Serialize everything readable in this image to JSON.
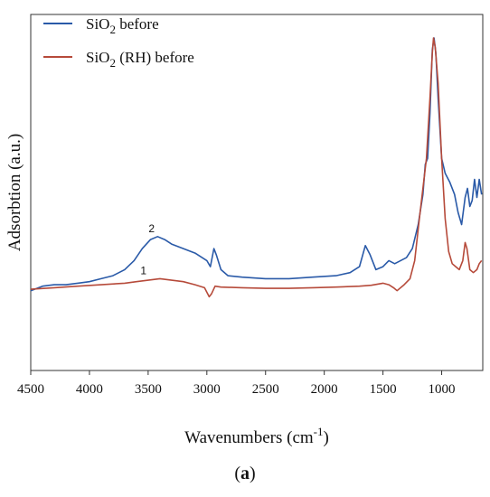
{
  "chart_data": {
    "type": "line",
    "xlabel": "Wavenumbers (cm",
    "xlabel_sup": "-1",
    "xlabel_end": ")",
    "ylabel": "Adsorbtion (a.u.)",
    "caption_open": "(",
    "caption_bold": "a",
    "caption_close": ")",
    "xlim": [
      4500,
      650
    ],
    "ylim": [
      0,
      1
    ],
    "x_reversed": true,
    "x_ticks": [
      4500,
      4000,
      3500,
      3000,
      2500,
      2000,
      1500,
      1000
    ],
    "y_ticks_labeled": false,
    "grid": false,
    "legend_position": "top-left",
    "series": [
      {
        "name": "SiO",
        "name_sub": "2",
        "name_end": " before",
        "color": "#2a5aa8",
        "points": [
          [
            4500,
            0.16
          ],
          [
            4400,
            0.175
          ],
          [
            4300,
            0.18
          ],
          [
            4200,
            0.18
          ],
          [
            4100,
            0.185
          ],
          [
            4000,
            0.19
          ],
          [
            3900,
            0.2
          ],
          [
            3800,
            0.21
          ],
          [
            3700,
            0.23
          ],
          [
            3620,
            0.26
          ],
          [
            3550,
            0.3
          ],
          [
            3480,
            0.33
          ],
          [
            3420,
            0.34
          ],
          [
            3360,
            0.33
          ],
          [
            3300,
            0.315
          ],
          [
            3200,
            0.3
          ],
          [
            3100,
            0.285
          ],
          [
            3000,
            0.26
          ],
          [
            2970,
            0.24
          ],
          [
            2940,
            0.3
          ],
          [
            2920,
            0.28
          ],
          [
            2880,
            0.23
          ],
          [
            2820,
            0.21
          ],
          [
            2700,
            0.205
          ],
          [
            2500,
            0.2
          ],
          [
            2300,
            0.2
          ],
          [
            2100,
            0.205
          ],
          [
            1900,
            0.21
          ],
          [
            1780,
            0.22
          ],
          [
            1700,
            0.24
          ],
          [
            1650,
            0.31
          ],
          [
            1610,
            0.28
          ],
          [
            1560,
            0.23
          ],
          [
            1500,
            0.24
          ],
          [
            1450,
            0.26
          ],
          [
            1400,
            0.25
          ],
          [
            1300,
            0.27
          ],
          [
            1250,
            0.3
          ],
          [
            1200,
            0.38
          ],
          [
            1160,
            0.48
          ],
          [
            1140,
            0.58
          ],
          [
            1120,
            0.6
          ],
          [
            1100,
            0.75
          ],
          [
            1080,
            0.96
          ],
          [
            1065,
            1.0
          ],
          [
            1050,
            0.95
          ],
          [
            1030,
            0.8
          ],
          [
            1000,
            0.6
          ],
          [
            970,
            0.55
          ],
          [
            930,
            0.52
          ],
          [
            890,
            0.48
          ],
          [
            860,
            0.42
          ],
          [
            830,
            0.38
          ],
          [
            800,
            0.47
          ],
          [
            780,
            0.5
          ],
          [
            760,
            0.44
          ],
          [
            740,
            0.46
          ],
          [
            720,
            0.53
          ],
          [
            700,
            0.47
          ],
          [
            680,
            0.53
          ],
          [
            660,
            0.48
          ]
        ]
      },
      {
        "name": "SiO",
        "name_sub": "2",
        "name_end": " (RH) before",
        "color": "#b64a3a",
        "points": [
          [
            4500,
            0.165
          ],
          [
            4300,
            0.17
          ],
          [
            4100,
            0.175
          ],
          [
            3900,
            0.18
          ],
          [
            3700,
            0.185
          ],
          [
            3600,
            0.19
          ],
          [
            3500,
            0.195
          ],
          [
            3400,
            0.2
          ],
          [
            3300,
            0.195
          ],
          [
            3200,
            0.19
          ],
          [
            3100,
            0.18
          ],
          [
            3020,
            0.17
          ],
          [
            2980,
            0.14
          ],
          [
            2960,
            0.15
          ],
          [
            2930,
            0.175
          ],
          [
            2880,
            0.172
          ],
          [
            2700,
            0.17
          ],
          [
            2500,
            0.168
          ],
          [
            2300,
            0.168
          ],
          [
            2100,
            0.17
          ],
          [
            1900,
            0.172
          ],
          [
            1700,
            0.175
          ],
          [
            1600,
            0.178
          ],
          [
            1500,
            0.185
          ],
          [
            1450,
            0.18
          ],
          [
            1410,
            0.17
          ],
          [
            1380,
            0.16
          ],
          [
            1320,
            0.18
          ],
          [
            1270,
            0.2
          ],
          [
            1230,
            0.26
          ],
          [
            1190,
            0.4
          ],
          [
            1160,
            0.5
          ],
          [
            1130,
            0.6
          ],
          [
            1100,
            0.8
          ],
          [
            1080,
            0.95
          ],
          [
            1070,
            1.0
          ],
          [
            1055,
            0.97
          ],
          [
            1030,
            0.85
          ],
          [
            1000,
            0.6
          ],
          [
            970,
            0.4
          ],
          [
            940,
            0.29
          ],
          [
            910,
            0.25
          ],
          [
            880,
            0.24
          ],
          [
            850,
            0.23
          ],
          [
            820,
            0.26
          ],
          [
            800,
            0.32
          ],
          [
            785,
            0.3
          ],
          [
            760,
            0.23
          ],
          [
            730,
            0.22
          ],
          [
            700,
            0.23
          ],
          [
            680,
            0.25
          ],
          [
            660,
            0.26
          ]
        ]
      }
    ],
    "annotations": [
      {
        "text": "2",
        "x": 3470,
        "y": 0.355
      },
      {
        "text": "1",
        "x": 3540,
        "y": 0.215
      }
    ]
  }
}
